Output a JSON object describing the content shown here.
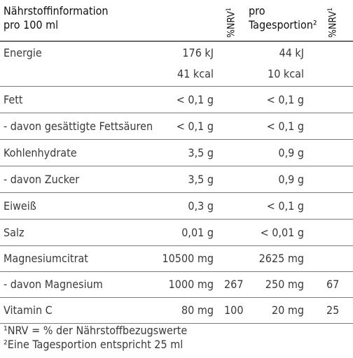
{
  "header": {
    "title_line1": "Nährstoffinformation",
    "title_line2": "pro 100 ml",
    "nrv_col1": "%NRV",
    "nrv_col1_sup": "1",
    "portion_line1": "pro",
    "portion_line2": "Tagesportion²",
    "nrv_col2": "%NRV",
    "nrv_col2_sup": "1"
  },
  "rows": [
    {
      "label": "Energie",
      "v100": "176 kJ",
      "v100b": "41 kcal",
      "vport": "44 kJ",
      "vportb": "10 kcal"
    },
    {
      "label": "Fett",
      "v100": "< 0,1 g",
      "vport": "< 0,1 g"
    },
    {
      "label": " - davon gesättigte Fettsäuren",
      "v100": "< 0,1 g",
      "vport": "< 0,1 g"
    },
    {
      "label": "Kohlenhydrate",
      "v100": "3,5 g",
      "vport": "0,9 g"
    },
    {
      "label": " - davon Zucker",
      "v100": "3,5 g",
      "vport": "0,9 g"
    },
    {
      "label": "Eiweiß",
      "v100": "0,3 g",
      "vport": "< 0,1 g"
    },
    {
      "label": "Salz",
      "v100": "0,01 g",
      "vport": "< 0,01 g"
    },
    {
      "label": "Magnesiumcitrat",
      "v100": "10500 mg",
      "vport": "2625 mg"
    },
    {
      "label": "- davon Magnesium",
      "v100": "1000 mg",
      "nrv1": "267",
      "vport": "250 mg",
      "nrv2": "67"
    },
    {
      "label": "Vitamin C",
      "v100": "80 mg",
      "nrv1": "100",
      "vport": "20 mg",
      "nrv2": "25"
    }
  ],
  "footnotes": {
    "line1": "¹NRV = % der Nährstoffbezugswerte",
    "line2": "²Eine Tagesportion entspricht 25 ml"
  }
}
